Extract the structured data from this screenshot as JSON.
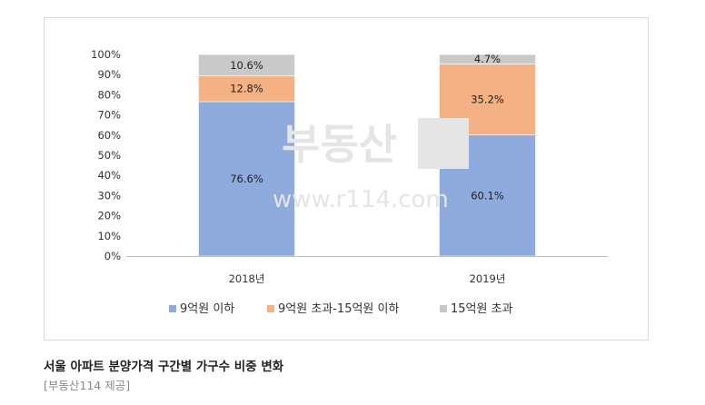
{
  "chart_data": {
    "type": "bar",
    "stacked": true,
    "categories": [
      "2018년",
      "2019년"
    ],
    "series": [
      {
        "name": "9억원 이하",
        "values": [
          76.6,
          60.1
        ],
        "labels": [
          "76.6%",
          "60.1%"
        ],
        "color": "#8faadc"
      },
      {
        "name": "9억원 초과-15억원 이하",
        "values": [
          12.8,
          35.2
        ],
        "labels": [
          "12.8%",
          "35.2%"
        ],
        "color": "#f4b183"
      },
      {
        "name": "15억원 초과",
        "values": [
          10.6,
          4.7
        ],
        "labels": [
          "10.6%",
          "4.7%"
        ],
        "color": "#c9c9c9"
      }
    ],
    "yticks": [
      "0%",
      "10%",
      "20%",
      "30%",
      "40%",
      "50%",
      "60%",
      "70%",
      "80%",
      "90%",
      "100%"
    ],
    "ylim": [
      0,
      100
    ],
    "grid": false,
    "legend_position": "bottom"
  },
  "watermark": {
    "text": "부동산",
    "url": "www.r114.com"
  },
  "caption": "서울 아파트 분양가격 구간별 가구수 비중 변화",
  "source": "[부동산114 제공]"
}
